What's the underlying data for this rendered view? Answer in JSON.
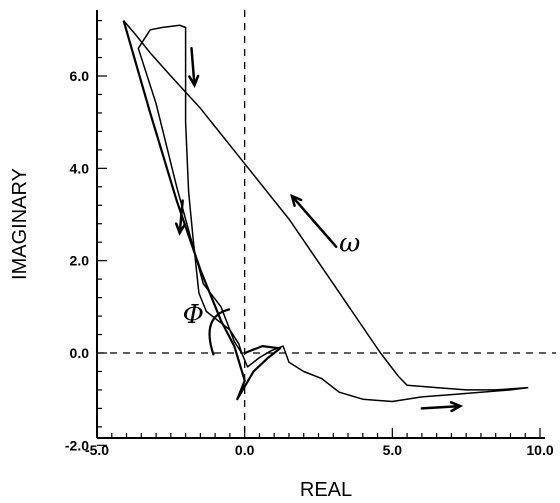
{
  "chart_data": {
    "type": "line",
    "title": "",
    "xlabel": "REAL",
    "ylabel": "IMAGINARY",
    "xlim": [
      -5.0,
      10.0
    ],
    "ylim": [
      -2.0,
      7.3
    ],
    "x_ticks": [
      "-5.0",
      "0.0",
      "5.0",
      "10.0"
    ],
    "y_ticks": [
      "-2.0",
      "0.0",
      "2.0",
      "4.0",
      "6.0"
    ],
    "x_tick_values": [
      -5.0,
      0.0,
      5.0,
      10.0
    ],
    "y_tick_values": [
      -2.0,
      0.0,
      2.0,
      4.0,
      6.0
    ],
    "grid": false,
    "dashed_axes": {
      "x": 0.0,
      "y": 0.0
    },
    "annotations": [
      {
        "text": "ω",
        "x": 3.2,
        "y": 2.2
      },
      {
        "text": "Φ",
        "x": -2.1,
        "y": 0.65
      }
    ],
    "series": [
      {
        "points": [
          [
            -0.1,
            0.0
          ],
          [
            -0.35,
            0.25
          ],
          [
            -0.8,
            1.0
          ],
          [
            -1.4,
            1.5
          ],
          [
            -2.3,
            3.6
          ],
          [
            -3.0,
            5.4
          ],
          [
            -3.6,
            6.6
          ],
          [
            -3.2,
            7.0
          ],
          [
            -2.8,
            7.05
          ],
          [
            -2.2,
            7.1
          ],
          [
            -2.0,
            7.05
          ],
          [
            -2.0,
            6.5
          ],
          [
            -2.0,
            5.0
          ],
          [
            -1.9,
            3.5
          ],
          [
            -1.75,
            2.5
          ],
          [
            -1.55,
            1.3
          ],
          [
            -1.3,
            0.9
          ],
          [
            -0.9,
            0.7
          ],
          [
            -0.5,
            0.5
          ],
          [
            -0.2,
            0.2
          ],
          [
            -0.1,
            0.0
          ],
          [
            0.1,
            -0.3
          ],
          [
            0.5,
            -0.1
          ],
          [
            0.9,
            0.05
          ],
          [
            1.3,
            0.15
          ],
          [
            1.5,
            -0.2
          ],
          [
            2.0,
            -0.4
          ],
          [
            2.6,
            -0.55
          ],
          [
            3.2,
            -0.85
          ],
          [
            4.0,
            -1.0
          ],
          [
            5.0,
            -1.05
          ],
          [
            6.0,
            -0.95
          ],
          [
            7.0,
            -0.9
          ],
          [
            8.0,
            -0.85
          ],
          [
            9.0,
            -0.8
          ],
          [
            9.6,
            -0.75
          ]
        ]
      },
      {
        "points": [
          [
            9.6,
            -0.75
          ],
          [
            8.5,
            -0.8
          ],
          [
            7.5,
            -0.8
          ],
          [
            6.5,
            -0.75
          ],
          [
            5.5,
            -0.7
          ],
          [
            5.2,
            -0.5
          ],
          [
            4.6,
            0.0
          ],
          [
            3.0,
            1.5
          ],
          [
            1.5,
            2.9
          ],
          [
            0.0,
            4.1
          ],
          [
            -1.5,
            5.3
          ],
          [
            -2.5,
            6.0
          ],
          [
            -3.2,
            6.5
          ],
          [
            -3.7,
            6.9
          ],
          [
            -4.1,
            7.2
          ]
        ]
      },
      {
        "points": [
          [
            -4.1,
            7.2
          ],
          [
            -3.2,
            5.2
          ],
          [
            -2.3,
            3.3
          ],
          [
            -1.5,
            1.8
          ],
          [
            -0.8,
            0.7
          ],
          [
            -0.35,
            0.15
          ],
          [
            0.0,
            -0.6
          ],
          [
            -0.25,
            -1.0
          ],
          [
            0.3,
            -0.4
          ],
          [
            0.8,
            -0.1
          ],
          [
            1.2,
            0.1
          ],
          [
            0.6,
            0.15
          ],
          [
            0.0,
            0.0
          ]
        ]
      }
    ],
    "arrows": [
      {
        "from": [
          -1.8,
          6.6
        ],
        "to": [
          -1.7,
          5.8
        ]
      },
      {
        "from": [
          -2.1,
          3.3
        ],
        "to": [
          -2.2,
          2.6
        ]
      },
      {
        "from": [
          3.1,
          2.3
        ],
        "to": [
          1.6,
          3.4
        ]
      },
      {
        "from": [
          6.0,
          -1.2
        ],
        "to": [
          7.3,
          -1.15
        ]
      }
    ]
  }
}
